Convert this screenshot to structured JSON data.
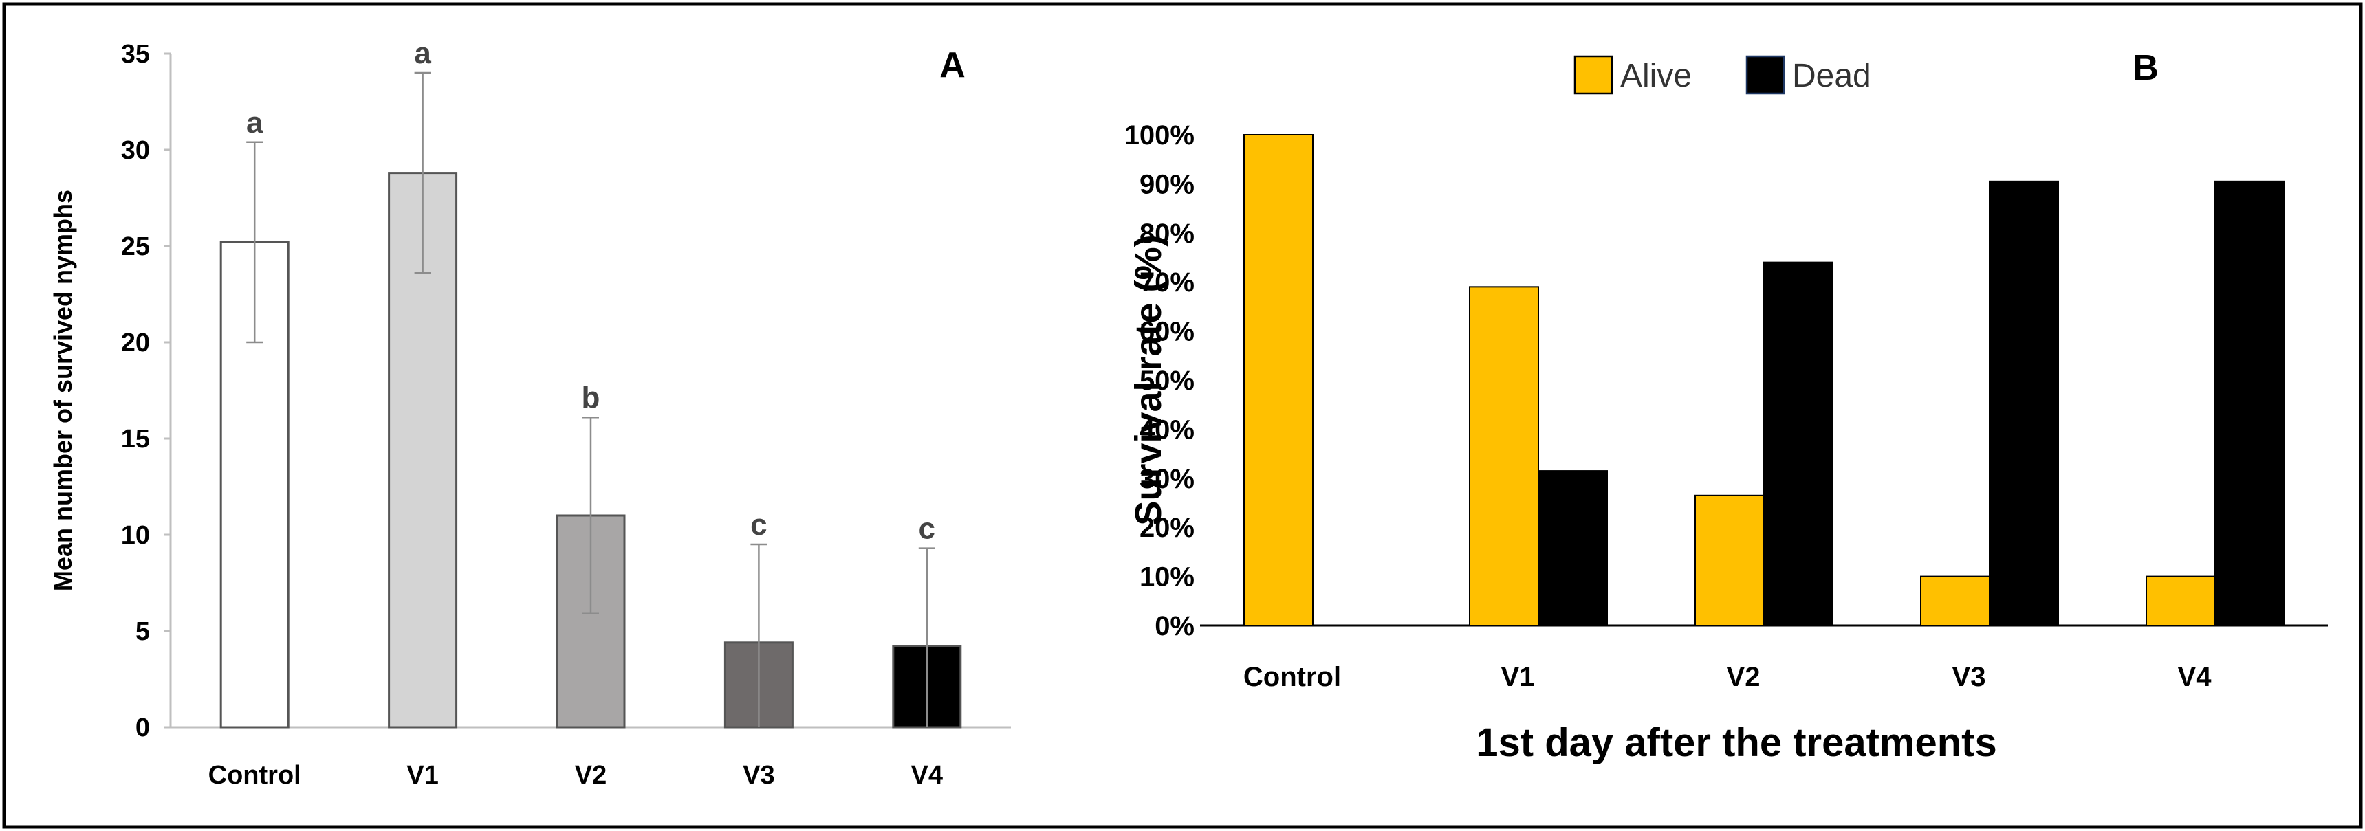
{
  "chart_data": [
    {
      "type": "bar",
      "panel_label": "A",
      "ylabel": "Mean number of survived nymphs",
      "xlabel": "",
      "categories": [
        "Control",
        "V1",
        "V2",
        "V3",
        "V4"
      ],
      "values": [
        25.2,
        28.8,
        11.0,
        4.4,
        4.2
      ],
      "error": [
        5.2,
        5.2,
        5.1,
        5.1,
        5.1
      ],
      "significance": [
        "a",
        "a",
        "b",
        "c",
        "c"
      ],
      "colors": [
        "#ffffff",
        "#d4d4d4",
        "#a8a6a6",
        "#6e6a6a",
        "#000000"
      ],
      "ylim": [
        0,
        35
      ],
      "yticks": [
        0,
        5,
        10,
        15,
        20,
        25,
        30,
        35
      ]
    },
    {
      "type": "bar",
      "panel_label": "B",
      "ylabel": "Survival rate (%)",
      "xlabel": "1st day after the treatments",
      "categories": [
        "Control",
        "V1",
        "V2",
        "V3",
        "V4"
      ],
      "series": [
        {
          "name": "Alive",
          "color": "#ffc000",
          "values": [
            100,
            69,
            26.5,
            10,
            10
          ]
        },
        {
          "name": "Dead",
          "color": "#000000",
          "values": [
            0,
            31.5,
            74,
            90.5,
            90.5
          ]
        }
      ],
      "ylim": [
        0,
        100
      ],
      "yticks": [
        "0%",
        "10%",
        "20%",
        "30%",
        "40%",
        "50%",
        "60%",
        "70%",
        "80%",
        "90%",
        "100%"
      ]
    }
  ]
}
